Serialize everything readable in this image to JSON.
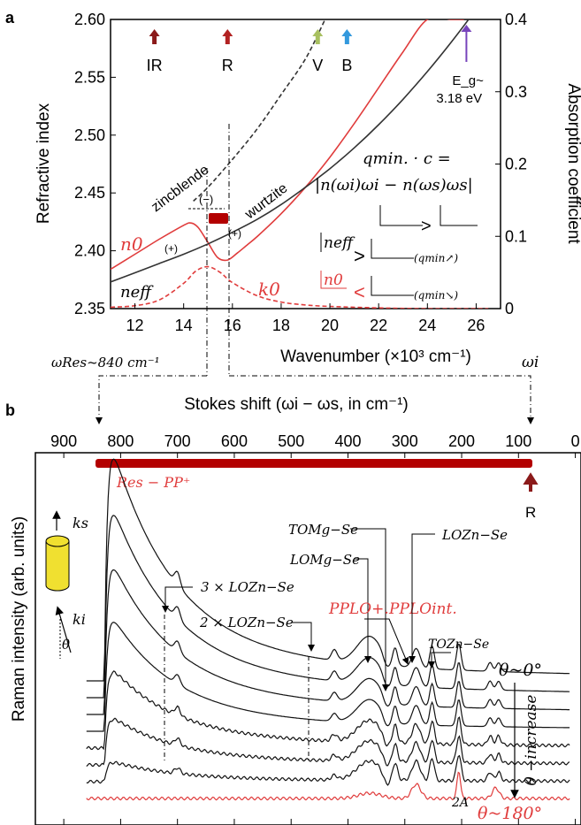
{
  "chart_data": [
    {
      "panel": "a",
      "type": "line",
      "xlabel": "Wavenumber (×10³ cm⁻¹)",
      "ylabel": "Refractive index",
      "y2label": "Absorption coefficient",
      "xlim": [
        11,
        27
      ],
      "ylim": [
        2.35,
        2.6
      ],
      "y2lim": [
        0,
        0.4
      ],
      "xticks": [
        12,
        14,
        16,
        18,
        20,
        22,
        24,
        26
      ],
      "yticks": [
        2.35,
        2.4,
        2.45,
        2.5,
        2.55,
        2.6
      ],
      "y2ticks": [
        0,
        0.1,
        0.2,
        0.3,
        0.4
      ],
      "series": [
        {
          "name": "n_0",
          "axis": "left",
          "color": "#e03c3c",
          "style": "solid",
          "x": [
            11,
            12,
            13,
            14,
            14.3,
            14.6,
            15,
            15.4,
            15.8,
            16.2,
            16.6,
            17,
            18,
            19,
            20,
            21,
            22,
            23,
            24,
            25,
            25.5
          ],
          "y": [
            2.384,
            2.397,
            2.41,
            2.422,
            2.424,
            2.42,
            2.407,
            2.394,
            2.392,
            2.398,
            2.405,
            2.412,
            2.432,
            2.455,
            2.481,
            2.51,
            2.541,
            2.572,
            2.6,
            2.6,
            2.6
          ]
        },
        {
          "name": "n_eff",
          "axis": "left",
          "color": "#333333",
          "style": "solid",
          "x": [
            11,
            12,
            13,
            14,
            15,
            16,
            17,
            18,
            19,
            20,
            21,
            22,
            23,
            24,
            25,
            26,
            27
          ],
          "y": [
            2.373,
            2.381,
            2.389,
            2.397,
            2.406,
            2.416,
            2.427,
            2.44,
            2.455,
            2.471,
            2.489,
            2.509,
            2.531,
            2.555,
            2.581,
            2.609,
            2.64
          ]
        },
        {
          "name": "zincblende",
          "axis": "left",
          "color": "#333333",
          "style": "dashed",
          "x": [
            14.4,
            15,
            16,
            17,
            18,
            19,
            19.8
          ],
          "y": [
            2.443,
            2.455,
            2.479,
            2.505,
            2.535,
            2.566,
            2.6
          ]
        },
        {
          "name": "k_0",
          "axis": "right",
          "color": "#e03c3c",
          "style": "dashed",
          "x": [
            11,
            12,
            13,
            14,
            14.5,
            15,
            15.5,
            16,
            17,
            18,
            19,
            20,
            22,
            24,
            26.5
          ],
          "y": [
            0.002,
            0.004,
            0.012,
            0.035,
            0.052,
            0.058,
            0.05,
            0.036,
            0.018,
            0.009,
            0.005,
            0.003,
            0.001,
            0.0,
            0.0
          ]
        }
      ],
      "markers": [
        {
          "label": "IR",
          "x": 12.8,
          "color": "#8b1a1a"
        },
        {
          "label": "R",
          "x": 15.8,
          "color": "#b22222"
        },
        {
          "label": "V",
          "x": 19.5,
          "color": "#a8c060"
        },
        {
          "label": "B",
          "x": 20.7,
          "color": "#3399dd"
        },
        {
          "label": "E_g~ 3.18 eV",
          "x": 25.6,
          "color": "#7744bb"
        }
      ],
      "annotations": {
        "zincblende": "zincblende",
        "wurtzite": "wurtzite",
        "minus": "(−)",
        "plus_left": "(+)",
        "plus_right": "(+)",
        "n0": "n0",
        "neff": "neff",
        "k0": "k0",
        "q_eq1": "qmin. · c =",
        "q_eq2": "|n(ωi)ωi − n(ωs)ωs|",
        "gt": ">",
        "lt": "<",
        "neff_legend": "neff",
        "n0_legend": "n0",
        "qmin_up": "(qmin↗)",
        "qmin_down": "(qmin↘)"
      },
      "omega_res_label": "ωRes~840 cm⁻¹",
      "omega_i_label": "ωi"
    },
    {
      "panel": "b",
      "type": "line",
      "title": "Stokes shift  (ωi − ωs, in cm⁻¹)",
      "ylabel": "Raman intensity (arb. units)",
      "xlim": [
        950,
        -10
      ],
      "xticks": [
        900,
        800,
        700,
        600,
        500,
        400,
        300,
        200,
        100,
        0
      ],
      "bar_label": "Res − PP⁺",
      "bar_range": [
        830,
        0
      ],
      "R_label": "R",
      "peak_labels": {
        "three_lo": "3 × LOZn−Se",
        "two_lo": "2 × LOZn−Se",
        "to_mgse": "TOMg−Se",
        "lo_mgse": "LOMg−Se",
        "pp_lo_plus": "PPLO+.",
        "pp_lo_int": "PPLOint.",
        "lo_znse": "LOZn−Se",
        "to_znse": "TOZn−Se",
        "two_a": "2A",
        "theta0": "θ~0°",
        "theta180": "θ~180°",
        "theta_increase": "θ −increase",
        "ks": "ks",
        "ki": "ki",
        "theta": "θ"
      },
      "peak_positions_cm": {
        "res": 820,
        "three_lo": 700,
        "two_lo": 424,
        "lo_mgse": 317,
        "to_mgse": 280,
        "pp_plus": 255,
        "pp_int": 250,
        "lo_znse": 252,
        "to_znse": 205
      },
      "series_count": 8
    }
  ],
  "panel_labels": {
    "a": "a",
    "b": "b"
  }
}
